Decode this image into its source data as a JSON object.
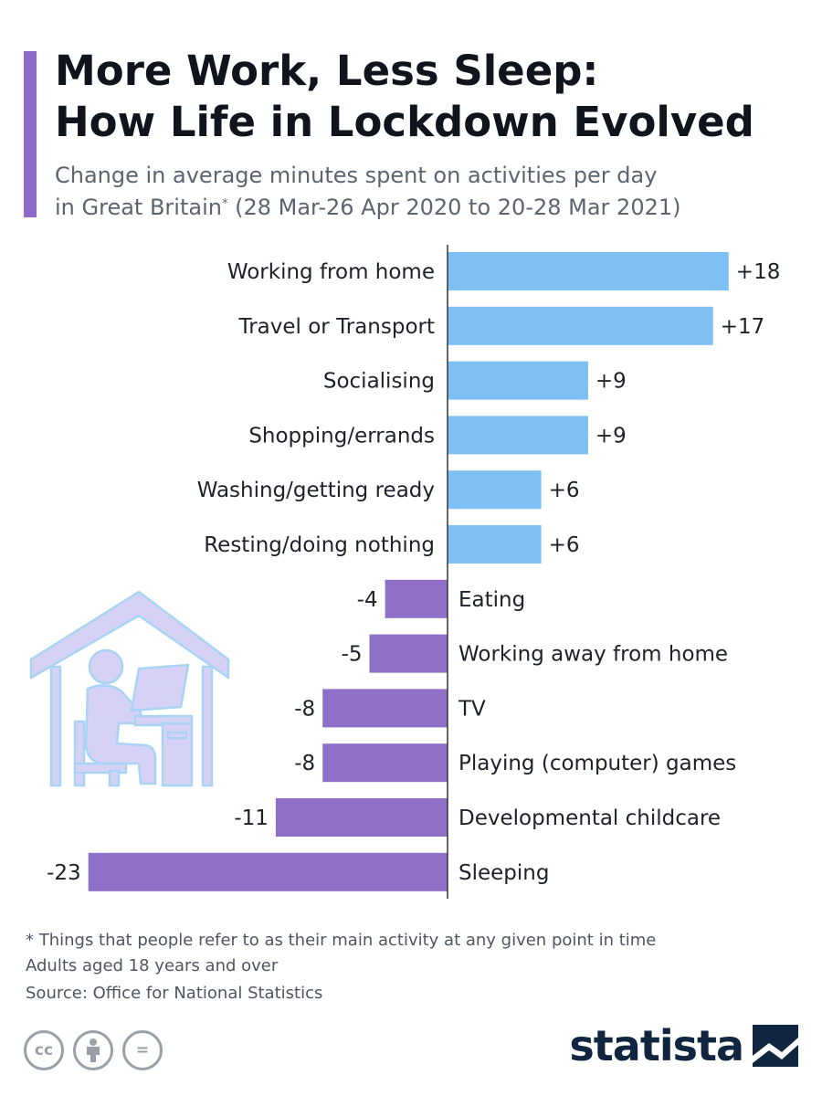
{
  "header": {
    "title_line1": "More Work, Less Sleep:",
    "title_line2": "How Life in Lockdown Evolved",
    "subtitle_line1": "Change in average minutes spent on activities per day",
    "subtitle_line2_a": "in Great Britain",
    "subtitle_asterisk": "*",
    "subtitle_line2_b": " (28 Mar-26 Apr 2020 to 20-28 Mar 2021)"
  },
  "colors": {
    "accent": "#8e6bc9",
    "positive": "#7ec0f4",
    "negative": "#8e70c8",
    "axis": "#333333",
    "icon_fill": "#d6d2f5",
    "icon_stroke": "#a8d3f5"
  },
  "chart_data": {
    "type": "bar",
    "orientation": "horizontal",
    "categories": [
      "Working from home",
      "Travel or Transport",
      "Socialising",
      "Shopping/errands",
      "Washing/getting ready",
      "Resting/doing nothing",
      "Eating",
      "Working away from home",
      "TV",
      "Playing (computer) games",
      "Developmental childcare",
      "Sleeping"
    ],
    "values": [
      18,
      17,
      9,
      9,
      6,
      6,
      -4,
      -5,
      -8,
      -8,
      -11,
      -23
    ],
    "value_labels": [
      "+18",
      "+17",
      "+9",
      "+9",
      "+6",
      "+6",
      "-4",
      "-5",
      "-8",
      "-8",
      "-11",
      "-23"
    ],
    "xlim": [
      -23,
      18
    ],
    "grid": false,
    "legend": "none"
  },
  "icon": {
    "illustration": "house-person-computer-icon"
  },
  "footer": {
    "footnote_line1": "* Things that people refer to as their main activity at any given point in time",
    "footnote_line2": "Adults aged 18 years and over",
    "source": "Source: Office for National Statistics",
    "license_icons": [
      "cc-icon",
      "attribution-icon",
      "no-derivatives-icon"
    ],
    "license_cc": "cc",
    "license_nd": "=",
    "brand": "statista"
  }
}
